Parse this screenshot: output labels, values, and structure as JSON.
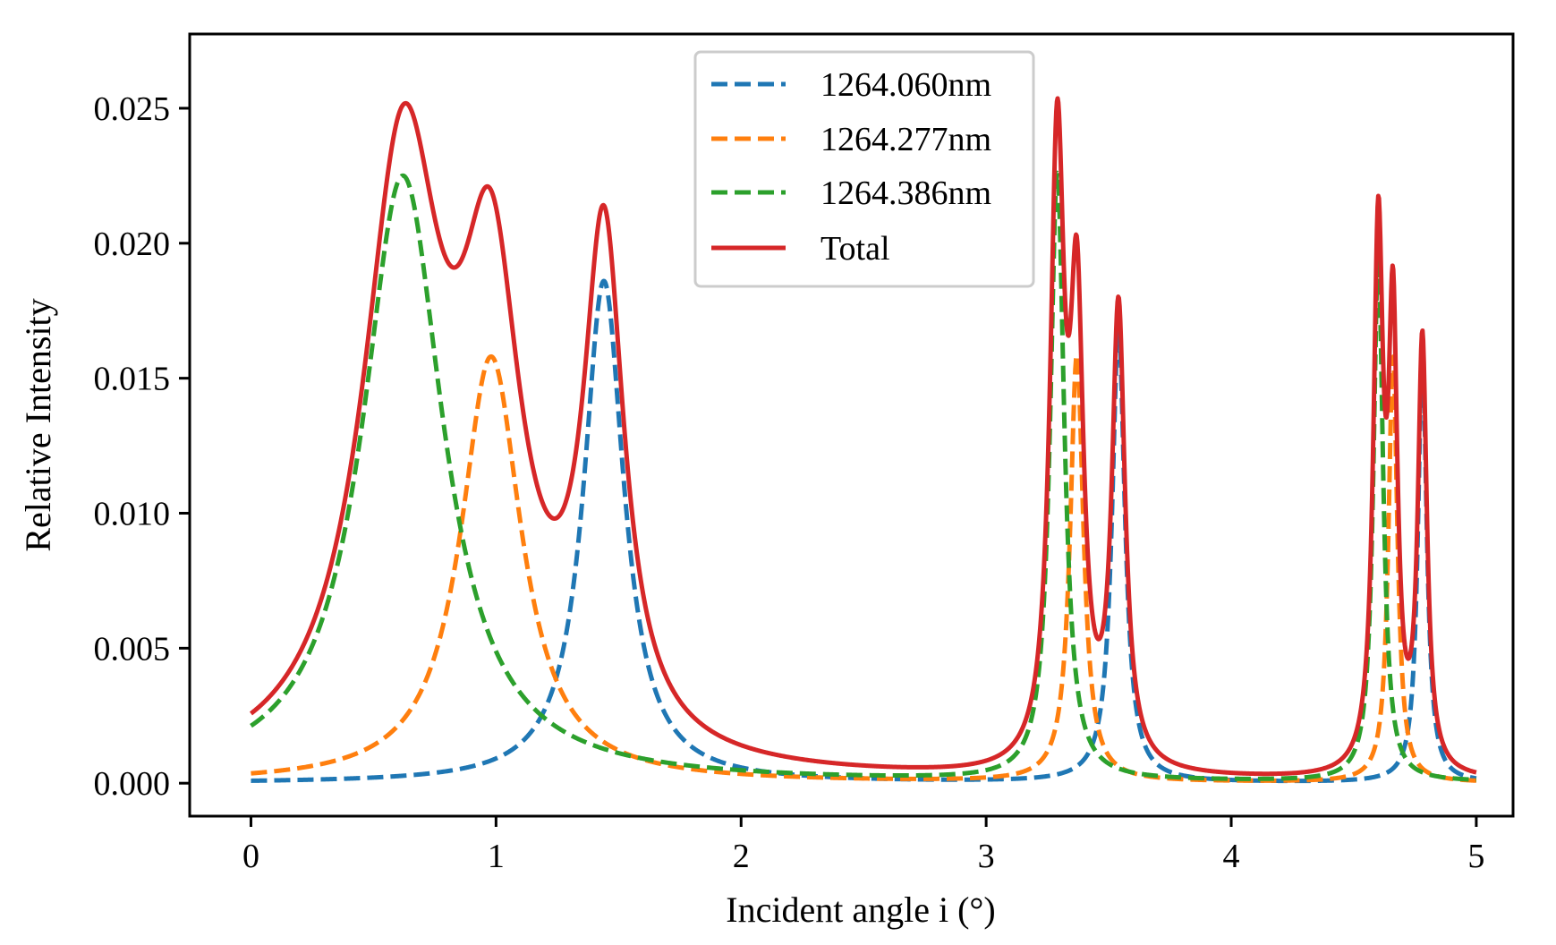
{
  "chart_data": {
    "type": "line",
    "title": "",
    "xlabel": "Incident angle i (°)",
    "ylabel": "Relative Intensity",
    "xlim": [
      -0.25,
      5.15
    ],
    "ylim": [
      -0.00122,
      0.02775
    ],
    "xticks": [
      0,
      1,
      2,
      3,
      4,
      5
    ],
    "xtick_labels": [
      "0",
      "1",
      "2",
      "3",
      "4",
      "5"
    ],
    "yticks": [
      0.0,
      0.005,
      0.01,
      0.015,
      0.02,
      0.025
    ],
    "ytick_labels": [
      "0.000",
      "0.005",
      "0.010",
      "0.015",
      "0.020",
      "0.025"
    ],
    "grid": false,
    "legend_position": "top-center",
    "series": [
      {
        "name": "1264.060nm",
        "color": "#1f77b4",
        "style": "dashed",
        "peaks": [
          {
            "center": 1.44,
            "height": 0.0186,
            "hwhm": 0.1
          },
          {
            "center": 3.54,
            "height": 0.0168,
            "hwhm": 0.032
          },
          {
            "center": 4.78,
            "height": 0.0158,
            "hwhm": 0.022
          }
        ]
      },
      {
        "name": "1264.277nm",
        "color": "#ff7f0e",
        "style": "dashed",
        "peaks": [
          {
            "center": 0.98,
            "height": 0.0158,
            "hwhm": 0.15
          },
          {
            "center": 3.37,
            "height": 0.0158,
            "hwhm": 0.033
          },
          {
            "center": 4.66,
            "height": 0.0158,
            "hwhm": 0.022
          }
        ]
      },
      {
        "name": "1264.386nm",
        "color": "#2ca02c",
        "style": "dashed",
        "peaks": [
          {
            "center": 0.62,
            "height": 0.0225,
            "hwhm": 0.2
          },
          {
            "center": 3.29,
            "height": 0.0225,
            "hwhm": 0.035
          },
          {
            "center": 4.6,
            "height": 0.0195,
            "hwhm": 0.024
          }
        ]
      },
      {
        "name": "Total",
        "color": "#d62728",
        "style": "solid",
        "sum_of": [
          "1264.060nm",
          "1264.277nm",
          "1264.386nm"
        ]
      }
    ],
    "x_range": [
      0,
      5
    ]
  }
}
